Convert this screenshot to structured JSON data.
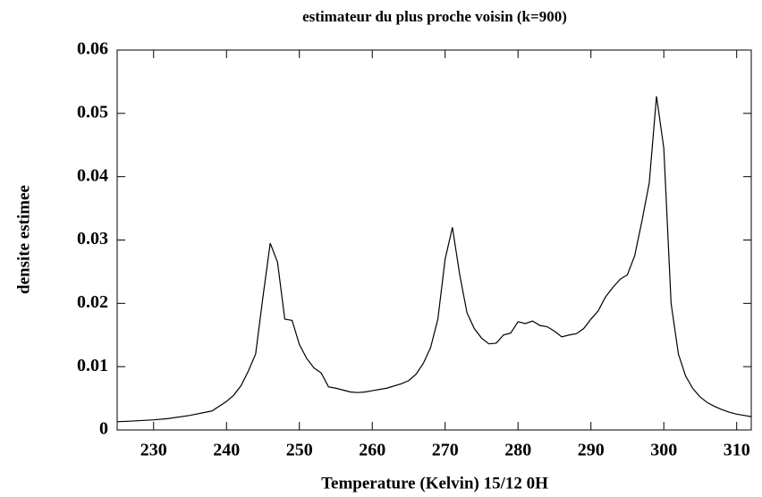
{
  "chart_data": {
    "type": "line",
    "title": "estimateur du plus proche voisin (k=900)",
    "xlabel": "Temperature (Kelvin) 15/12 0H",
    "ylabel": "densite estimee",
    "x": [
      225,
      227,
      230,
      232,
      235,
      238,
      240,
      241,
      242,
      243,
      244,
      245,
      246,
      247,
      248,
      249,
      250,
      251,
      252,
      253,
      254,
      255,
      256,
      257,
      258,
      259,
      260,
      262,
      264,
      265,
      266,
      267,
      268,
      269,
      270,
      271,
      272,
      273,
      274,
      275,
      276,
      277,
      278,
      279,
      280,
      281,
      282,
      283,
      284,
      285,
      286,
      287,
      288,
      289,
      290,
      291,
      292,
      293,
      294,
      295,
      296,
      297,
      298,
      299,
      300,
      301,
      302,
      303,
      304,
      305,
      306,
      307,
      308,
      309,
      310,
      311,
      312
    ],
    "series": [
      {
        "color": "#000000",
        "values": [
          0.0013,
          0.0014,
          0.0016,
          0.0018,
          0.0023,
          0.003,
          0.0045,
          0.0055,
          0.007,
          0.0093,
          0.012,
          0.021,
          0.0295,
          0.0265,
          0.0175,
          0.0173,
          0.0135,
          0.0113,
          0.0098,
          0.009,
          0.0068,
          0.0066,
          0.0063,
          0.006,
          0.0059,
          0.006,
          0.0062,
          0.0066,
          0.0073,
          0.0078,
          0.0088,
          0.0105,
          0.013,
          0.0175,
          0.027,
          0.032,
          0.0245,
          0.0185,
          0.016,
          0.0145,
          0.0136,
          0.0137,
          0.015,
          0.0153,
          0.0171,
          0.0168,
          0.0172,
          0.0165,
          0.0163,
          0.0156,
          0.0147,
          0.015,
          0.0152,
          0.016,
          0.0175,
          0.0188,
          0.021,
          0.0225,
          0.0238,
          0.0245,
          0.0275,
          0.033,
          0.039,
          0.0527,
          0.0445,
          0.02,
          0.012,
          0.0085,
          0.0065,
          0.0052,
          0.0043,
          0.0037,
          0.0032,
          0.0028,
          0.0025,
          0.0023,
          0.0021
        ]
      }
    ],
    "xlim": [
      225,
      312
    ],
    "ylim": [
      0,
      0.06
    ],
    "xticks": [
      230,
      240,
      250,
      260,
      270,
      280,
      290,
      300,
      310
    ],
    "yticks": [
      0,
      0.01,
      0.02,
      0.03,
      0.04,
      0.05,
      0.06
    ]
  }
}
